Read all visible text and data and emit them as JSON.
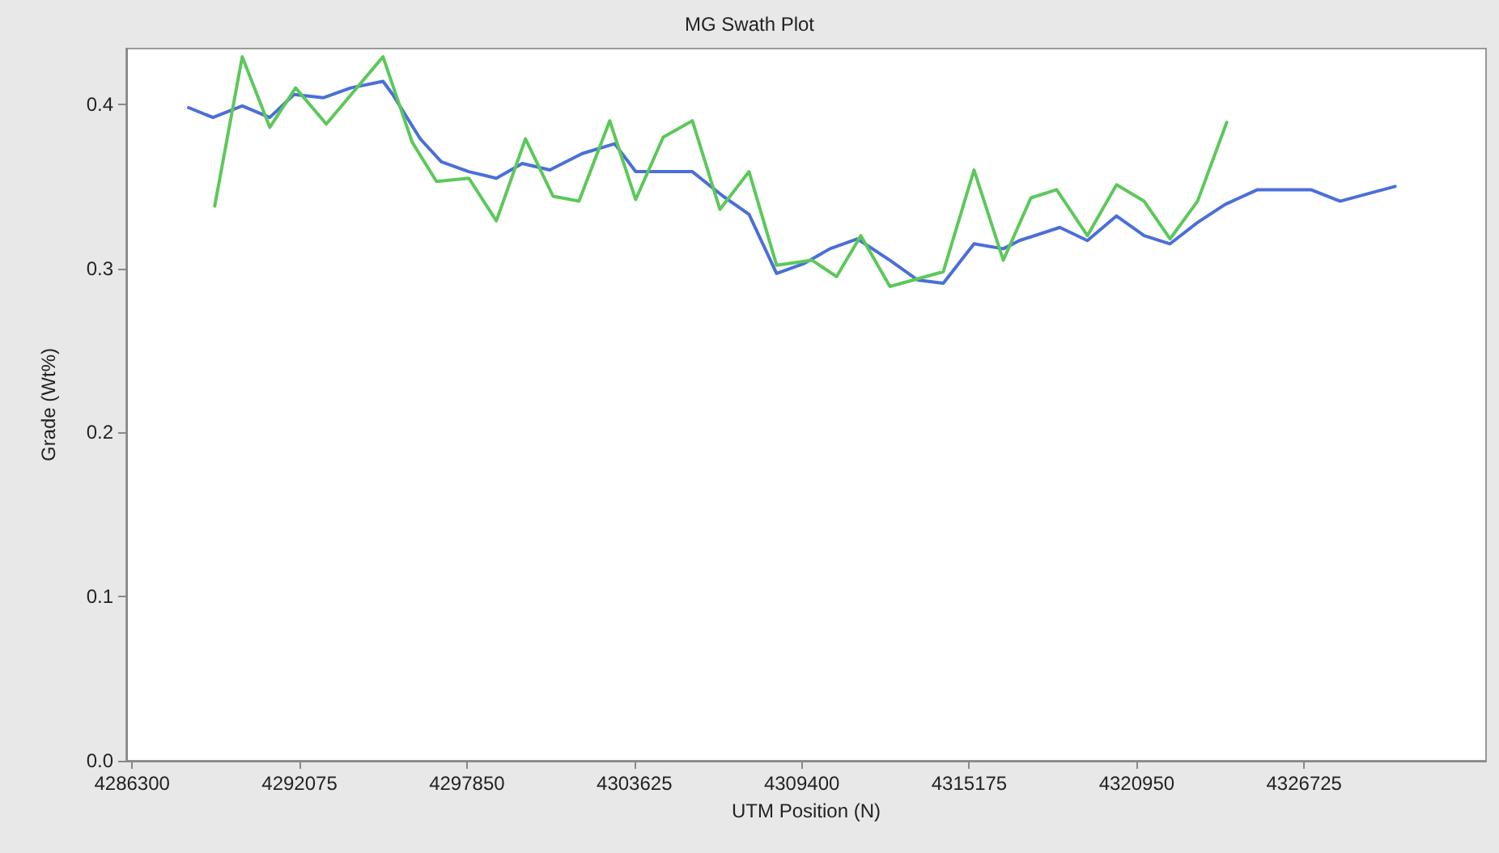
{
  "chart_data": {
    "type": "line",
    "title": "MG Swath Plot",
    "xlabel": "UTM Position (N)",
    "ylabel": "Grade (Wt%)",
    "xlim": [
      4286100,
      4333000
    ],
    "xticks": [
      4286300,
      4292075,
      4297850,
      4303625,
      4309400,
      4315175,
      4320950,
      4326725
    ],
    "ylim": [
      0,
      0.434
    ],
    "yticks": [
      {
        "value": 0,
        "label": "0.0"
      },
      {
        "value": 0.1,
        "label": "0.1"
      },
      {
        "value": 0.2,
        "label": "0.2"
      },
      {
        "value": 0.3,
        "label": "0.3"
      },
      {
        "value": 0.4,
        "label": "0.4"
      }
    ],
    "grid": false,
    "marker": "none",
    "line_style": "solid",
    "series": [
      {
        "color": "#4a6fd8",
        "x": [
          4288250,
          4289090,
          4290100,
          4291050,
          4291885,
          4292890,
          4293840,
          4294955,
          4295290,
          4296240,
          4296965,
          4297915,
          4298865,
          4299760,
          4300710,
          4301825,
          4302945,
          4303670,
          4305625,
          4306685,
          4307580,
          4308530,
          4309480,
          4310370,
          4311320,
          4312440,
          4313390,
          4314280,
          4315340,
          4316350,
          4316905,
          4318300,
          4319250,
          4320255,
          4321205,
          4322100,
          4323050,
          4324000,
          4325115,
          4326960,
          4327965,
          4329025,
          4329865
        ],
        "values": [
          0.398,
          0.392,
          0.399,
          0.392,
          0.406,
          0.404,
          0.41,
          0.414,
          0.406,
          0.379,
          0.365,
          0.359,
          0.355,
          0.364,
          0.36,
          0.37,
          0.376,
          0.359,
          0.359,
          0.344,
          0.333,
          0.297,
          0.303,
          0.312,
          0.318,
          0.305,
          0.293,
          0.291,
          0.315,
          0.312,
          0.317,
          0.325,
          0.317,
          0.332,
          0.32,
          0.315,
          0.328,
          0.339,
          0.348,
          0.348,
          0.341,
          0.346,
          0.35
        ]
      },
      {
        "color": "#5cc85a",
        "x": [
          4289150,
          4290100,
          4291050,
          4291940,
          4293000,
          4294955,
          4295960,
          4296800,
          4297915,
          4298865,
          4299870,
          4300820,
          4301715,
          4302775,
          4303670,
          4304620,
          4305625,
          4306575,
          4307580,
          4308530,
          4309760,
          4310600,
          4311435,
          4312440,
          4314280,
          4315340,
          4316350,
          4317300,
          4318190,
          4319250,
          4320255,
          4321205,
          4322100,
          4323050,
          4324055
        ],
        "values": [
          0.338,
          0.429,
          0.386,
          0.41,
          0.388,
          0.429,
          0.377,
          0.353,
          0.355,
          0.329,
          0.379,
          0.344,
          0.341,
          0.39,
          0.342,
          0.38,
          0.39,
          0.336,
          0.359,
          0.302,
          0.305,
          0.295,
          0.32,
          0.289,
          0.298,
          0.36,
          0.305,
          0.343,
          0.348,
          0.32,
          0.351,
          0.341,
          0.318,
          0.341,
          0.389
        ]
      }
    ]
  }
}
